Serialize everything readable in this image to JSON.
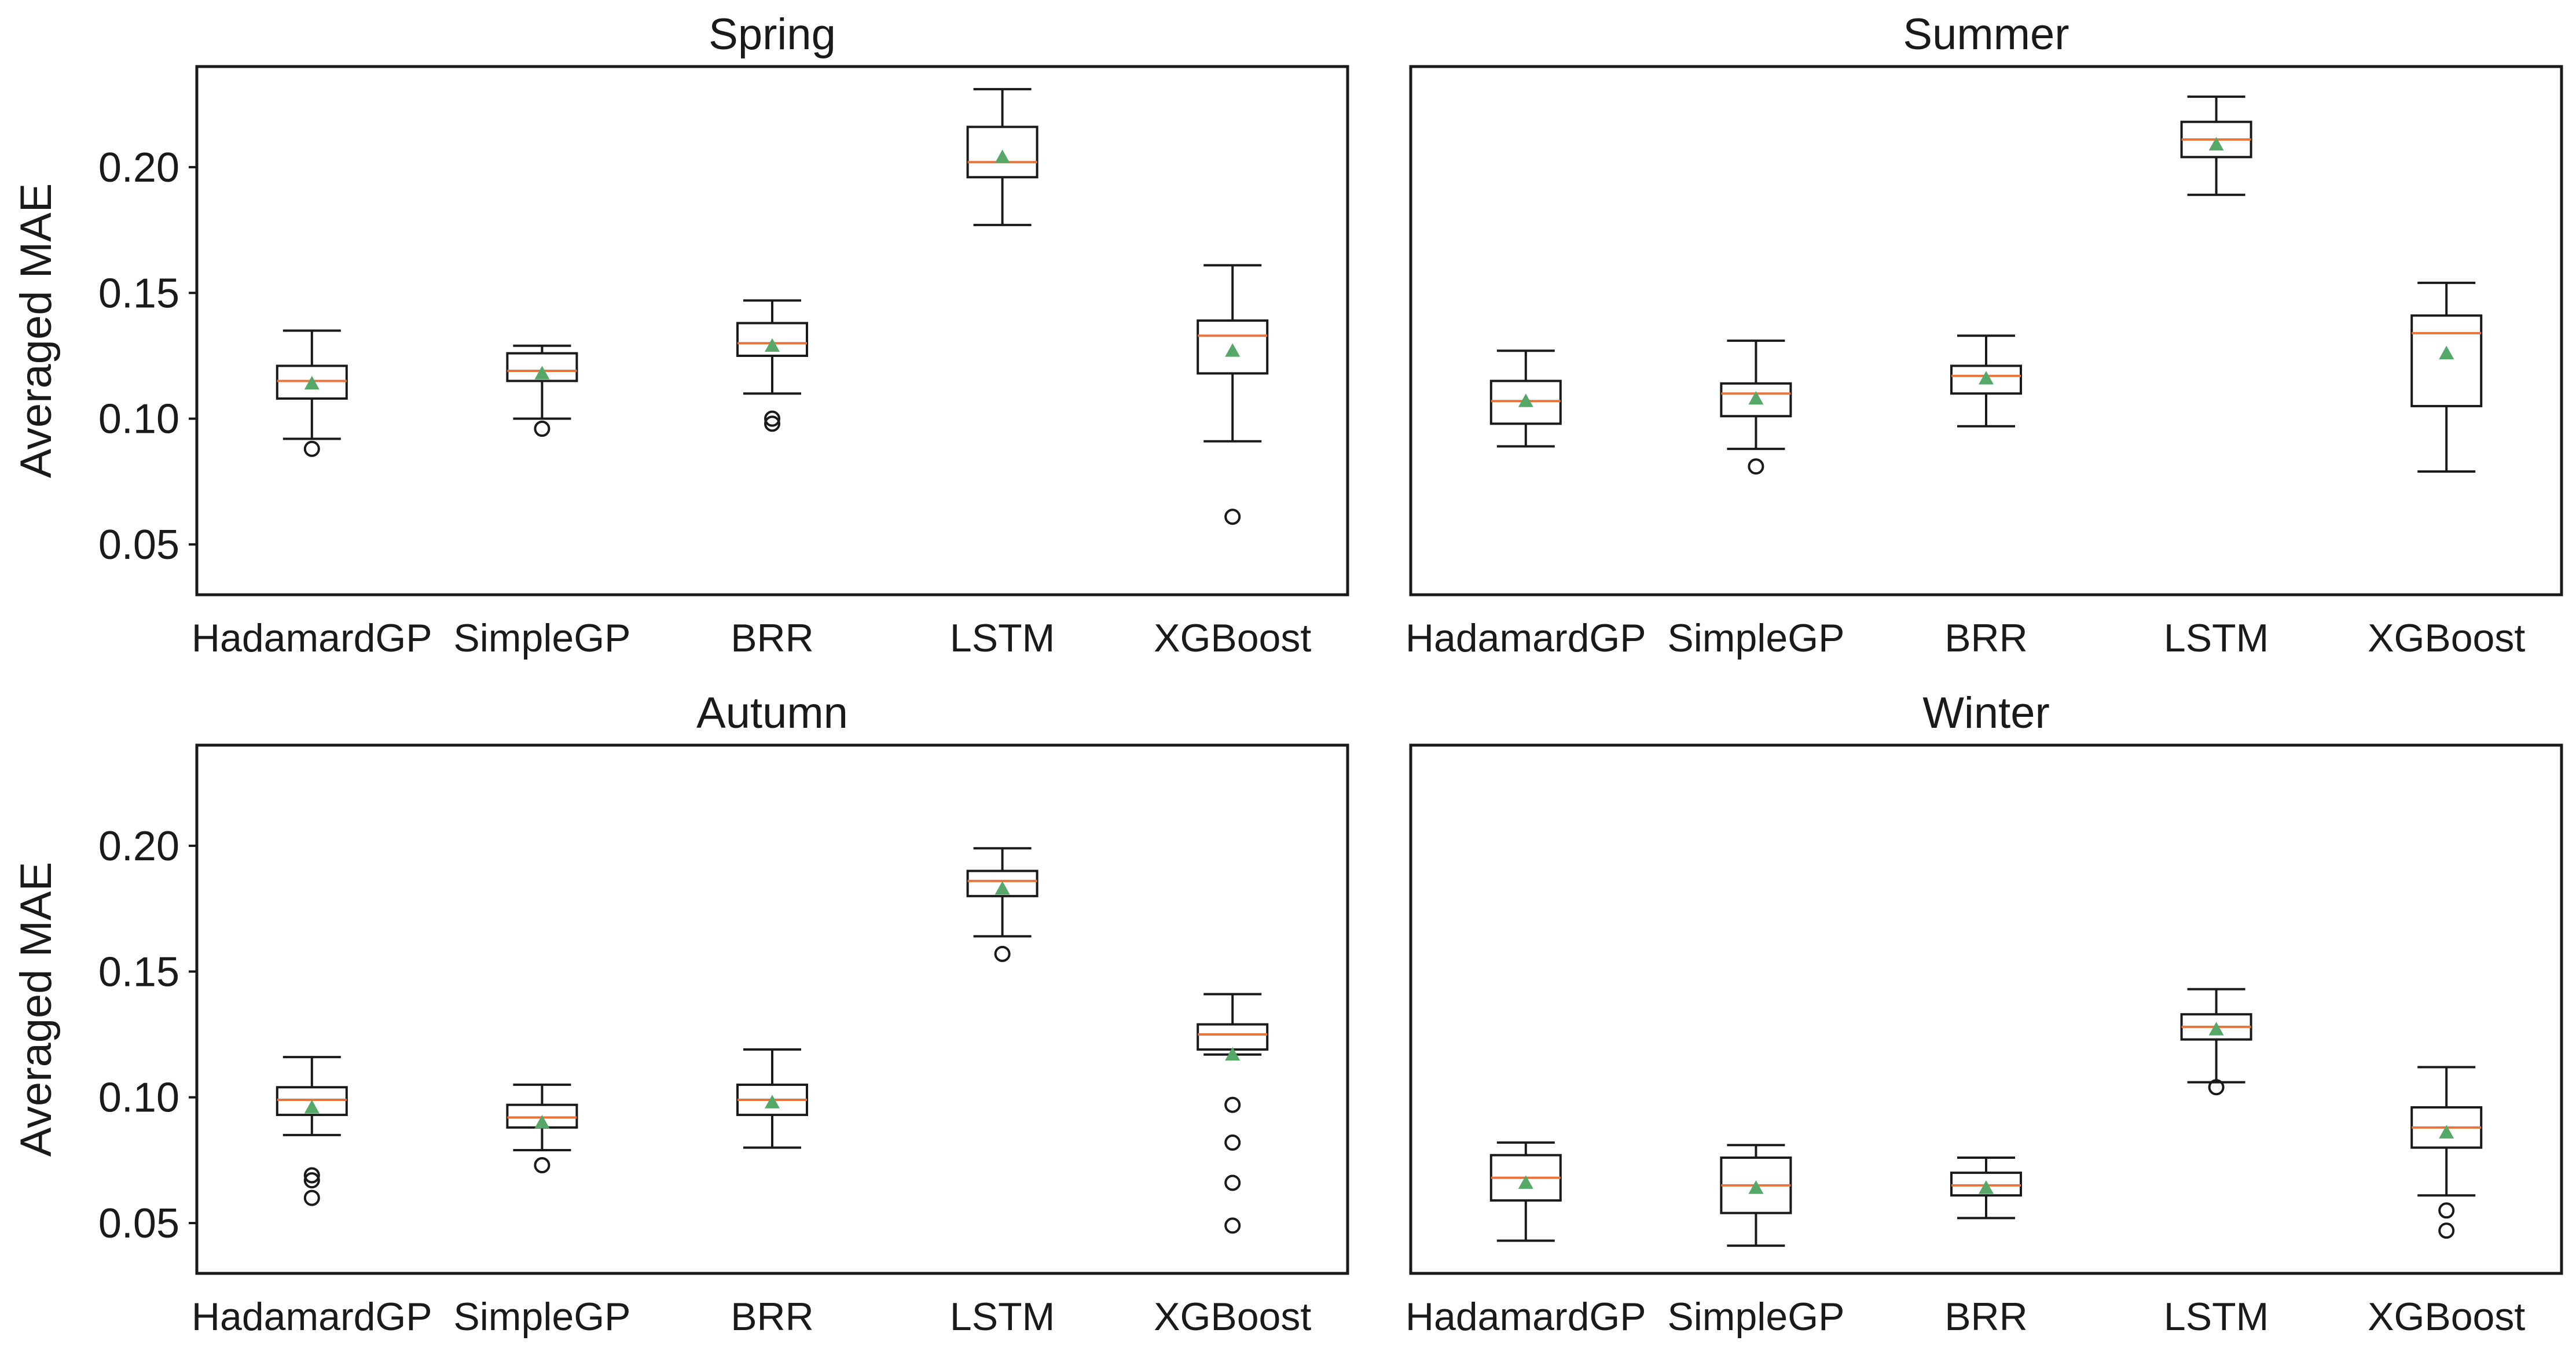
{
  "colors": {
    "frame": "#1a1a1a",
    "box": "#1a1a1a",
    "median": "#e8743b",
    "mean": "#55a868",
    "background": "#ffffff"
  },
  "chart_data": [
    {
      "type": "box",
      "title": "Spring",
      "ylabel": "Averaged MAE",
      "ylim": [
        0.03,
        0.24
      ],
      "yticks": [
        "0.05",
        "0.10",
        "0.15",
        "0.20"
      ],
      "categories": [
        "HadamardGP",
        "SimpleGP",
        "BRR",
        "LSTM",
        "XGBoost"
      ],
      "boxes": [
        {
          "whislo": 0.092,
          "q1": 0.108,
          "med": 0.115,
          "q3": 0.121,
          "whishi": 0.135,
          "mean": 0.114,
          "fliers": [
            0.088
          ]
        },
        {
          "whislo": 0.1,
          "q1": 0.115,
          "med": 0.119,
          "q3": 0.126,
          "whishi": 0.129,
          "mean": 0.118,
          "fliers": [
            0.096
          ]
        },
        {
          "whislo": 0.11,
          "q1": 0.125,
          "med": 0.13,
          "q3": 0.138,
          "whishi": 0.147,
          "mean": 0.129,
          "fliers": [
            0.098,
            0.1
          ]
        },
        {
          "whislo": 0.177,
          "q1": 0.196,
          "med": 0.202,
          "q3": 0.216,
          "whishi": 0.231,
          "mean": 0.204,
          "fliers": []
        },
        {
          "whislo": 0.091,
          "q1": 0.118,
          "med": 0.133,
          "q3": 0.139,
          "whishi": 0.161,
          "mean": 0.127,
          "fliers": [
            0.061
          ]
        }
      ]
    },
    {
      "type": "box",
      "title": "Summer",
      "ylabel": "",
      "ylim": [
        0.03,
        0.24
      ],
      "yticks": [],
      "categories": [
        "HadamardGP",
        "SimpleGP",
        "BRR",
        "LSTM",
        "XGBoost"
      ],
      "boxes": [
        {
          "whislo": 0.089,
          "q1": 0.098,
          "med": 0.107,
          "q3": 0.115,
          "whishi": 0.127,
          "mean": 0.107,
          "fliers": []
        },
        {
          "whislo": 0.088,
          "q1": 0.101,
          "med": 0.11,
          "q3": 0.114,
          "whishi": 0.131,
          "mean": 0.108,
          "fliers": [
            0.081
          ]
        },
        {
          "whislo": 0.097,
          "q1": 0.11,
          "med": 0.117,
          "q3": 0.121,
          "whishi": 0.133,
          "mean": 0.116,
          "fliers": []
        },
        {
          "whislo": 0.189,
          "q1": 0.204,
          "med": 0.211,
          "q3": 0.218,
          "whishi": 0.228,
          "mean": 0.209,
          "fliers": []
        },
        {
          "whislo": 0.079,
          "q1": 0.105,
          "med": 0.134,
          "q3": 0.141,
          "whishi": 0.154,
          "mean": 0.126,
          "fliers": []
        }
      ]
    },
    {
      "type": "box",
      "title": "Autumn",
      "ylabel": "Averaged MAE",
      "ylim": [
        0.03,
        0.24
      ],
      "yticks": [
        "0.05",
        "0.10",
        "0.15",
        "0.20"
      ],
      "categories": [
        "HadamardGP",
        "SimpleGP",
        "BRR",
        "LSTM",
        "XGBoost"
      ],
      "boxes": [
        {
          "whislo": 0.085,
          "q1": 0.093,
          "med": 0.099,
          "q3": 0.104,
          "whishi": 0.116,
          "mean": 0.096,
          "fliers": [
            0.06,
            0.067,
            0.069
          ]
        },
        {
          "whislo": 0.079,
          "q1": 0.088,
          "med": 0.092,
          "q3": 0.097,
          "whishi": 0.105,
          "mean": 0.09,
          "fliers": [
            0.073
          ]
        },
        {
          "whislo": 0.08,
          "q1": 0.093,
          "med": 0.099,
          "q3": 0.105,
          "whishi": 0.119,
          "mean": 0.098,
          "fliers": []
        },
        {
          "whislo": 0.164,
          "q1": 0.18,
          "med": 0.186,
          "q3": 0.19,
          "whishi": 0.199,
          "mean": 0.183,
          "fliers": [
            0.157
          ]
        },
        {
          "whislo": 0.117,
          "q1": 0.119,
          "med": 0.125,
          "q3": 0.129,
          "whishi": 0.141,
          "mean": 0.117,
          "fliers": [
            0.097,
            0.082,
            0.066,
            0.049
          ]
        }
      ]
    },
    {
      "type": "box",
      "title": "Winter",
      "ylabel": "",
      "ylim": [
        0.03,
        0.24
      ],
      "yticks": [],
      "categories": [
        "HadamardGP",
        "SimpleGP",
        "BRR",
        "LSTM",
        "XGBoost"
      ],
      "boxes": [
        {
          "whislo": 0.043,
          "q1": 0.059,
          "med": 0.068,
          "q3": 0.077,
          "whishi": 0.082,
          "mean": 0.066,
          "fliers": []
        },
        {
          "whislo": 0.041,
          "q1": 0.054,
          "med": 0.065,
          "q3": 0.076,
          "whishi": 0.081,
          "mean": 0.064,
          "fliers": []
        },
        {
          "whislo": 0.052,
          "q1": 0.061,
          "med": 0.065,
          "q3": 0.07,
          "whishi": 0.076,
          "mean": 0.064,
          "fliers": []
        },
        {
          "whislo": 0.106,
          "q1": 0.123,
          "med": 0.128,
          "q3": 0.133,
          "whishi": 0.143,
          "mean": 0.127,
          "fliers": [
            0.104
          ]
        },
        {
          "whislo": 0.061,
          "q1": 0.08,
          "med": 0.088,
          "q3": 0.096,
          "whishi": 0.112,
          "mean": 0.086,
          "fliers": [
            0.055,
            0.047
          ]
        }
      ]
    }
  ]
}
